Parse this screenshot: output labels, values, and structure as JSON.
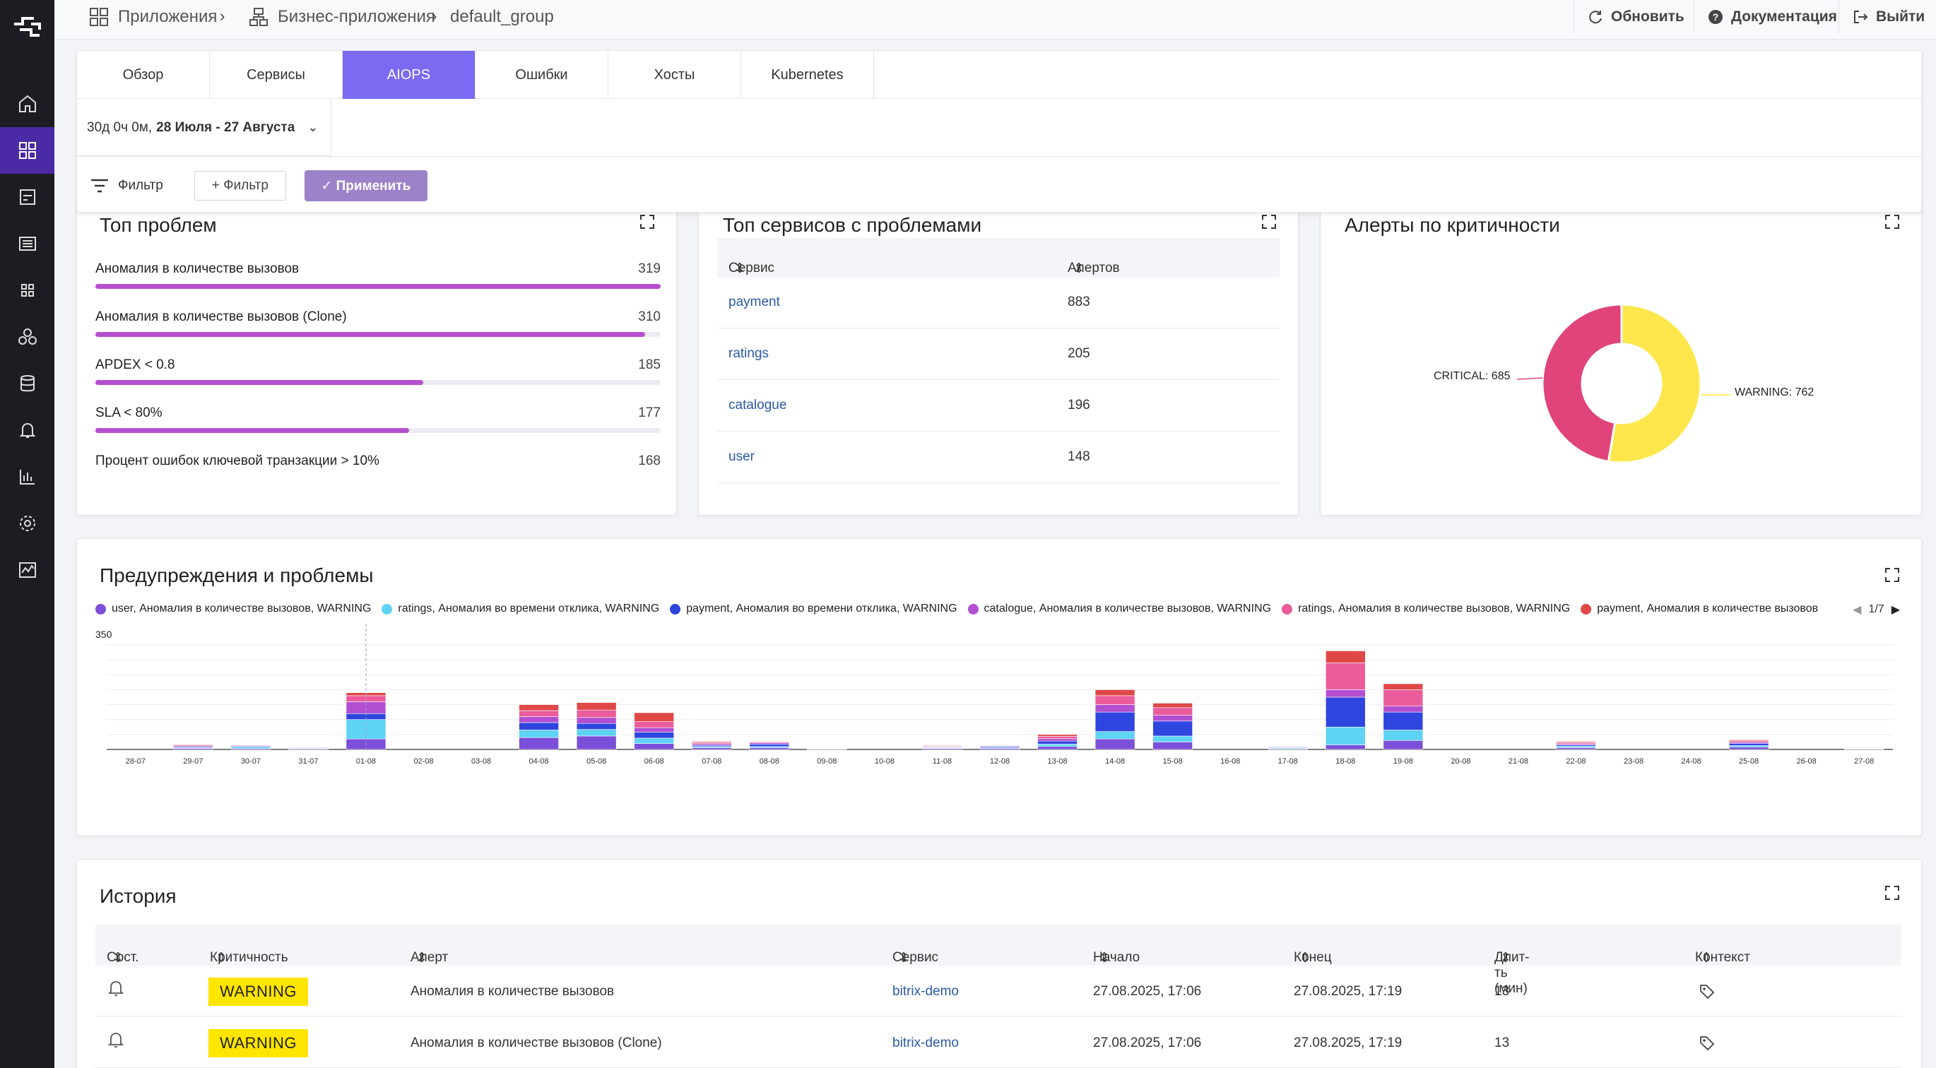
{
  "breadcrumb": {
    "apps": "Приложения",
    "business_apps": "Бизнес-приложения",
    "group": "default_group"
  },
  "top_actions": {
    "refresh": "Обновить",
    "docs": "Документация",
    "logout": "Выйти"
  },
  "tabs": [
    "Обзор",
    "Сервисы",
    "AIOPS",
    "Ошибки",
    "Хосты",
    "Kubernetes"
  ],
  "date_range": {
    "duration": "30д 0ч 0м,",
    "range": "28 Июля - 27 Августа"
  },
  "filter": {
    "label": "Фильтр",
    "add": "+ Фильтр",
    "apply": "✓ Применить"
  },
  "top_problems": {
    "title": "Топ проблем",
    "items": [
      {
        "label": "Аномалия в количестве вызовов",
        "value": "319",
        "fraction": 1.0
      },
      {
        "label": "Аномалия в количестве вызовов (Clone)",
        "value": "310",
        "fraction": 0.972
      },
      {
        "label": "APDEX < 0.8",
        "value": "185",
        "fraction": 0.58
      },
      {
        "label": "SLA < 80%",
        "value": "177",
        "fraction": 0.555
      },
      {
        "label": "Процент ошибок ключевой транзакции > 10%",
        "value": "168",
        "fraction": null
      }
    ]
  },
  "top_services": {
    "title": "Топ сервисов с проблемами",
    "col_service": "Сервис",
    "col_alerts": "Алертов",
    "rows": [
      {
        "name": "payment",
        "count": "883"
      },
      {
        "name": "ratings",
        "count": "205"
      },
      {
        "name": "catalogue",
        "count": "196"
      },
      {
        "name": "user",
        "count": "148"
      }
    ]
  },
  "alerts_by_severity": {
    "title": "Алерты по критичности",
    "critical_label": "CRITICAL: 685",
    "warning_label": "WARNING: 762",
    "critical": 685,
    "warning": 762,
    "critical_color": "#e0447a",
    "warning_color": "#fde74c"
  },
  "warnings_chart": {
    "title": "Предупреждения и проблемы",
    "legend": [
      {
        "name": "user, Аномалия в количестве вызовов, WARNING",
        "color": "#7b4fd8"
      },
      {
        "name": "ratings, Аномалия во времени отклика, WARNING",
        "color": "#5fd3f3"
      },
      {
        "name": "payment, Аномалия во времени отклика, WARNING",
        "color": "#2f45e0"
      },
      {
        "name": "catalogue, Аномалия в количестве вызовов, WARNING",
        "color": "#b24fd0"
      },
      {
        "name": "ratings, Аномалия в количестве вызовов, WARNING",
        "color": "#ea5c9b"
      },
      {
        "name": "payment, Аномалия в количестве вызовов",
        "color": "#e04848"
      }
    ],
    "pager": "1/7",
    "y_max_label": "350"
  },
  "chart_data": {
    "type": "bar",
    "stacked": true,
    "title": "Предупреждения и проблемы",
    "ylim": [
      0,
      350
    ],
    "grid": true,
    "legend_position": "top",
    "categories": [
      "28-07",
      "29-07",
      "30-07",
      "31-07",
      "01-08",
      "02-08",
      "03-08",
      "04-08",
      "05-08",
      "06-08",
      "07-08",
      "08-08",
      "09-08",
      "10-08",
      "11-08",
      "12-08",
      "13-08",
      "14-08",
      "15-08",
      "16-08",
      "17-08",
      "18-08",
      "19-08",
      "20-08",
      "21-08",
      "22-08",
      "23-08",
      "24-08",
      "25-08",
      "26-08",
      "27-08"
    ],
    "series": [
      {
        "name": "user, Аномалия в количестве вызовов, WARNING",
        "values": [
          0,
          4,
          3,
          2,
          35,
          0,
          0,
          40,
          45,
          20,
          6,
          6,
          1,
          0,
          3,
          4,
          10,
          35,
          25,
          0,
          2,
          15,
          30,
          0,
          0,
          6,
          0,
          0,
          8,
          0,
          1
        ]
      },
      {
        "name": "ratings, Аномалия во времени отклика, WARNING",
        "values": [
          0,
          2,
          5,
          1,
          65,
          0,
          0,
          25,
          22,
          18,
          4,
          4,
          0,
          0,
          2,
          3,
          8,
          25,
          20,
          0,
          3,
          60,
          35,
          0,
          0,
          5,
          0,
          0,
          5,
          0,
          1
        ]
      },
      {
        "name": "payment, Аномалия во времени отклика, WARNING",
        "values": [
          0,
          3,
          3,
          2,
          20,
          0,
          0,
          25,
          20,
          20,
          4,
          8,
          1,
          0,
          2,
          3,
          10,
          65,
          50,
          0,
          2,
          100,
          60,
          0,
          0,
          4,
          0,
          0,
          7,
          0,
          1
        ]
      },
      {
        "name": "catalogue, Аномалия в количестве вызовов, WARNING",
        "values": [
          0,
          3,
          2,
          2,
          40,
          0,
          0,
          20,
          20,
          15,
          5,
          4,
          1,
          0,
          2,
          2,
          8,
          25,
          20,
          0,
          1,
          25,
          20,
          0,
          0,
          4,
          0,
          0,
          5,
          0,
          1
        ]
      },
      {
        "name": "ratings, Аномалия в количестве вызовов, WARNING",
        "values": [
          0,
          3,
          2,
          1,
          20,
          0,
          0,
          20,
          25,
          20,
          4,
          3,
          1,
          0,
          2,
          2,
          8,
          30,
          25,
          0,
          2,
          90,
          55,
          0,
          0,
          4,
          0,
          0,
          4,
          0,
          2
        ]
      },
      {
        "name": "payment, Аномалия в количестве вызовов",
        "values": [
          0,
          2,
          1,
          1,
          10,
          0,
          0,
          20,
          25,
          30,
          3,
          2,
          1,
          0,
          2,
          1,
          6,
          20,
          15,
          0,
          1,
          40,
          20,
          0,
          0,
          3,
          0,
          0,
          3,
          0,
          1
        ]
      }
    ]
  },
  "history": {
    "title": "История",
    "columns": [
      "Сост.",
      "Критичность",
      "Алерт",
      "Сервис",
      "Начало",
      "Конец",
      "Длит-ть (мин)",
      "Контекст"
    ],
    "rows": [
      {
        "severity": "WARNING",
        "alert": "Аномалия в количестве вызовов",
        "service": "bitrix-demo",
        "start": "27.08.2025, 17:06",
        "end": "27.08.2025, 17:19",
        "duration": "13"
      },
      {
        "severity": "WARNING",
        "alert": "Аномалия в количестве вызовов (Clone)",
        "service": "bitrix-demo",
        "start": "27.08.2025, 17:06",
        "end": "27.08.2025, 17:19",
        "duration": "13"
      }
    ]
  }
}
